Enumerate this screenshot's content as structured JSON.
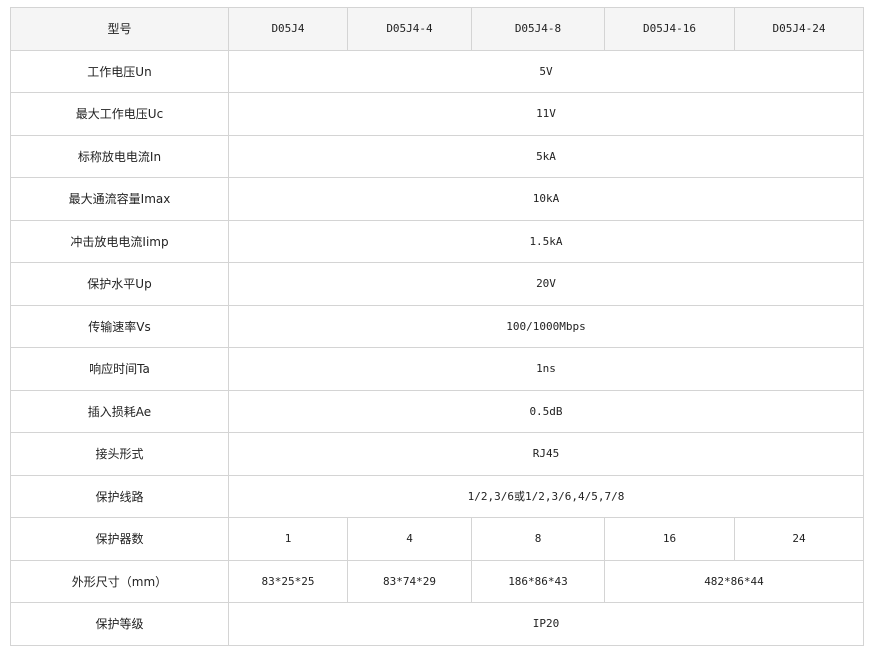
{
  "header": {
    "label": "型号",
    "models": [
      "D05J4",
      "D05J4-4",
      "D05J4-8",
      "D05J4-16",
      "D05J4-24"
    ]
  },
  "rows": [
    {
      "label": "工作电压Un",
      "value": "5V"
    },
    {
      "label": "最大工作电压Uc",
      "value": "11V"
    },
    {
      "label": "标称放电电流In",
      "value": "5kA"
    },
    {
      "label": "最大通流容量Imax",
      "value": "10kA"
    },
    {
      "label": "冲击放电电流Iimp",
      "value": "1.5kA"
    },
    {
      "label": "保护水平Up",
      "value": "20V"
    },
    {
      "label": "传输速率Vs",
      "value": "100/1000Mbps"
    },
    {
      "label": "响应时间Ta",
      "value": "1ns"
    },
    {
      "label": "插入损耗Ae",
      "value": "0.5dB"
    },
    {
      "label": "接头形式",
      "value": "RJ45"
    },
    {
      "label": "保护线路",
      "value": "1/2,3/6或1/2,3/6,4/5,7/8"
    }
  ],
  "protectors": {
    "label": "保护器数",
    "values": [
      "1",
      "4",
      "8",
      "16",
      "24"
    ]
  },
  "dimensions": {
    "label": "外形尺寸（mm）",
    "values": [
      "83*25*25",
      "83*74*29",
      "186*86*43",
      "482*86*44"
    ]
  },
  "rating": {
    "label": "保护等级",
    "value": "IP20"
  }
}
